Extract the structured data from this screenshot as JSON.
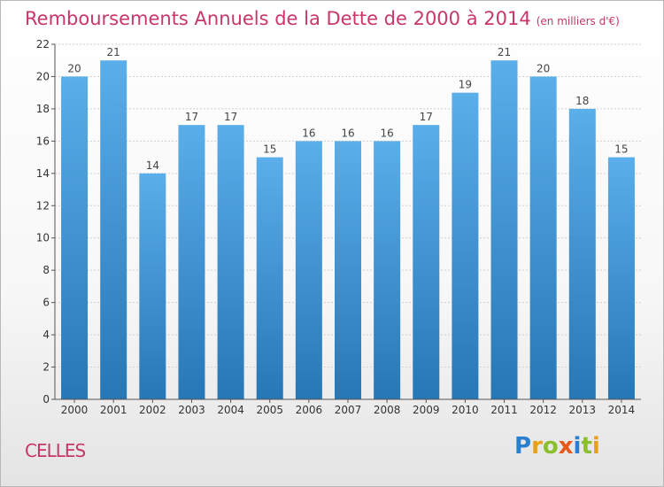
{
  "title": "Remboursements Annuels de la Dette de 2000 à 2014",
  "unit": "(en milliers d'€)",
  "commune": "CELLES",
  "logo": {
    "letters": [
      {
        "ch": "P",
        "color": "#2a7fd0"
      },
      {
        "ch": "r",
        "color": "#e8a21a"
      },
      {
        "ch": "o",
        "color": "#8cbf2e"
      },
      {
        "ch": "x",
        "color": "#e55a1c"
      },
      {
        "ch": "i",
        "color": "#2a7fd0"
      },
      {
        "ch": "t",
        "color": "#8cbf2e"
      },
      {
        "ch": "i",
        "color": "#e8a21a"
      }
    ]
  },
  "colors": {
    "bar_top": "#5aaeea",
    "bar_bottom": "#2677b6",
    "grid": "#d0d0d0"
  },
  "chart_data": {
    "type": "bar",
    "title": "Remboursements Annuels de la Dette de 2000 à 2014",
    "xlabel": "",
    "ylabel": "",
    "categories": [
      "2000",
      "2001",
      "2002",
      "2003",
      "2004",
      "2005",
      "2006",
      "2007",
      "2008",
      "2009",
      "2010",
      "2011",
      "2012",
      "2013",
      "2014"
    ],
    "values": [
      20,
      21,
      14,
      17,
      17,
      15,
      16,
      16,
      16,
      17,
      19,
      21,
      20,
      18,
      15
    ],
    "ylim": [
      0,
      22
    ],
    "yticks": [
      0,
      2,
      4,
      6,
      8,
      10,
      12,
      14,
      16,
      18,
      20,
      22
    ],
    "grid": true
  }
}
